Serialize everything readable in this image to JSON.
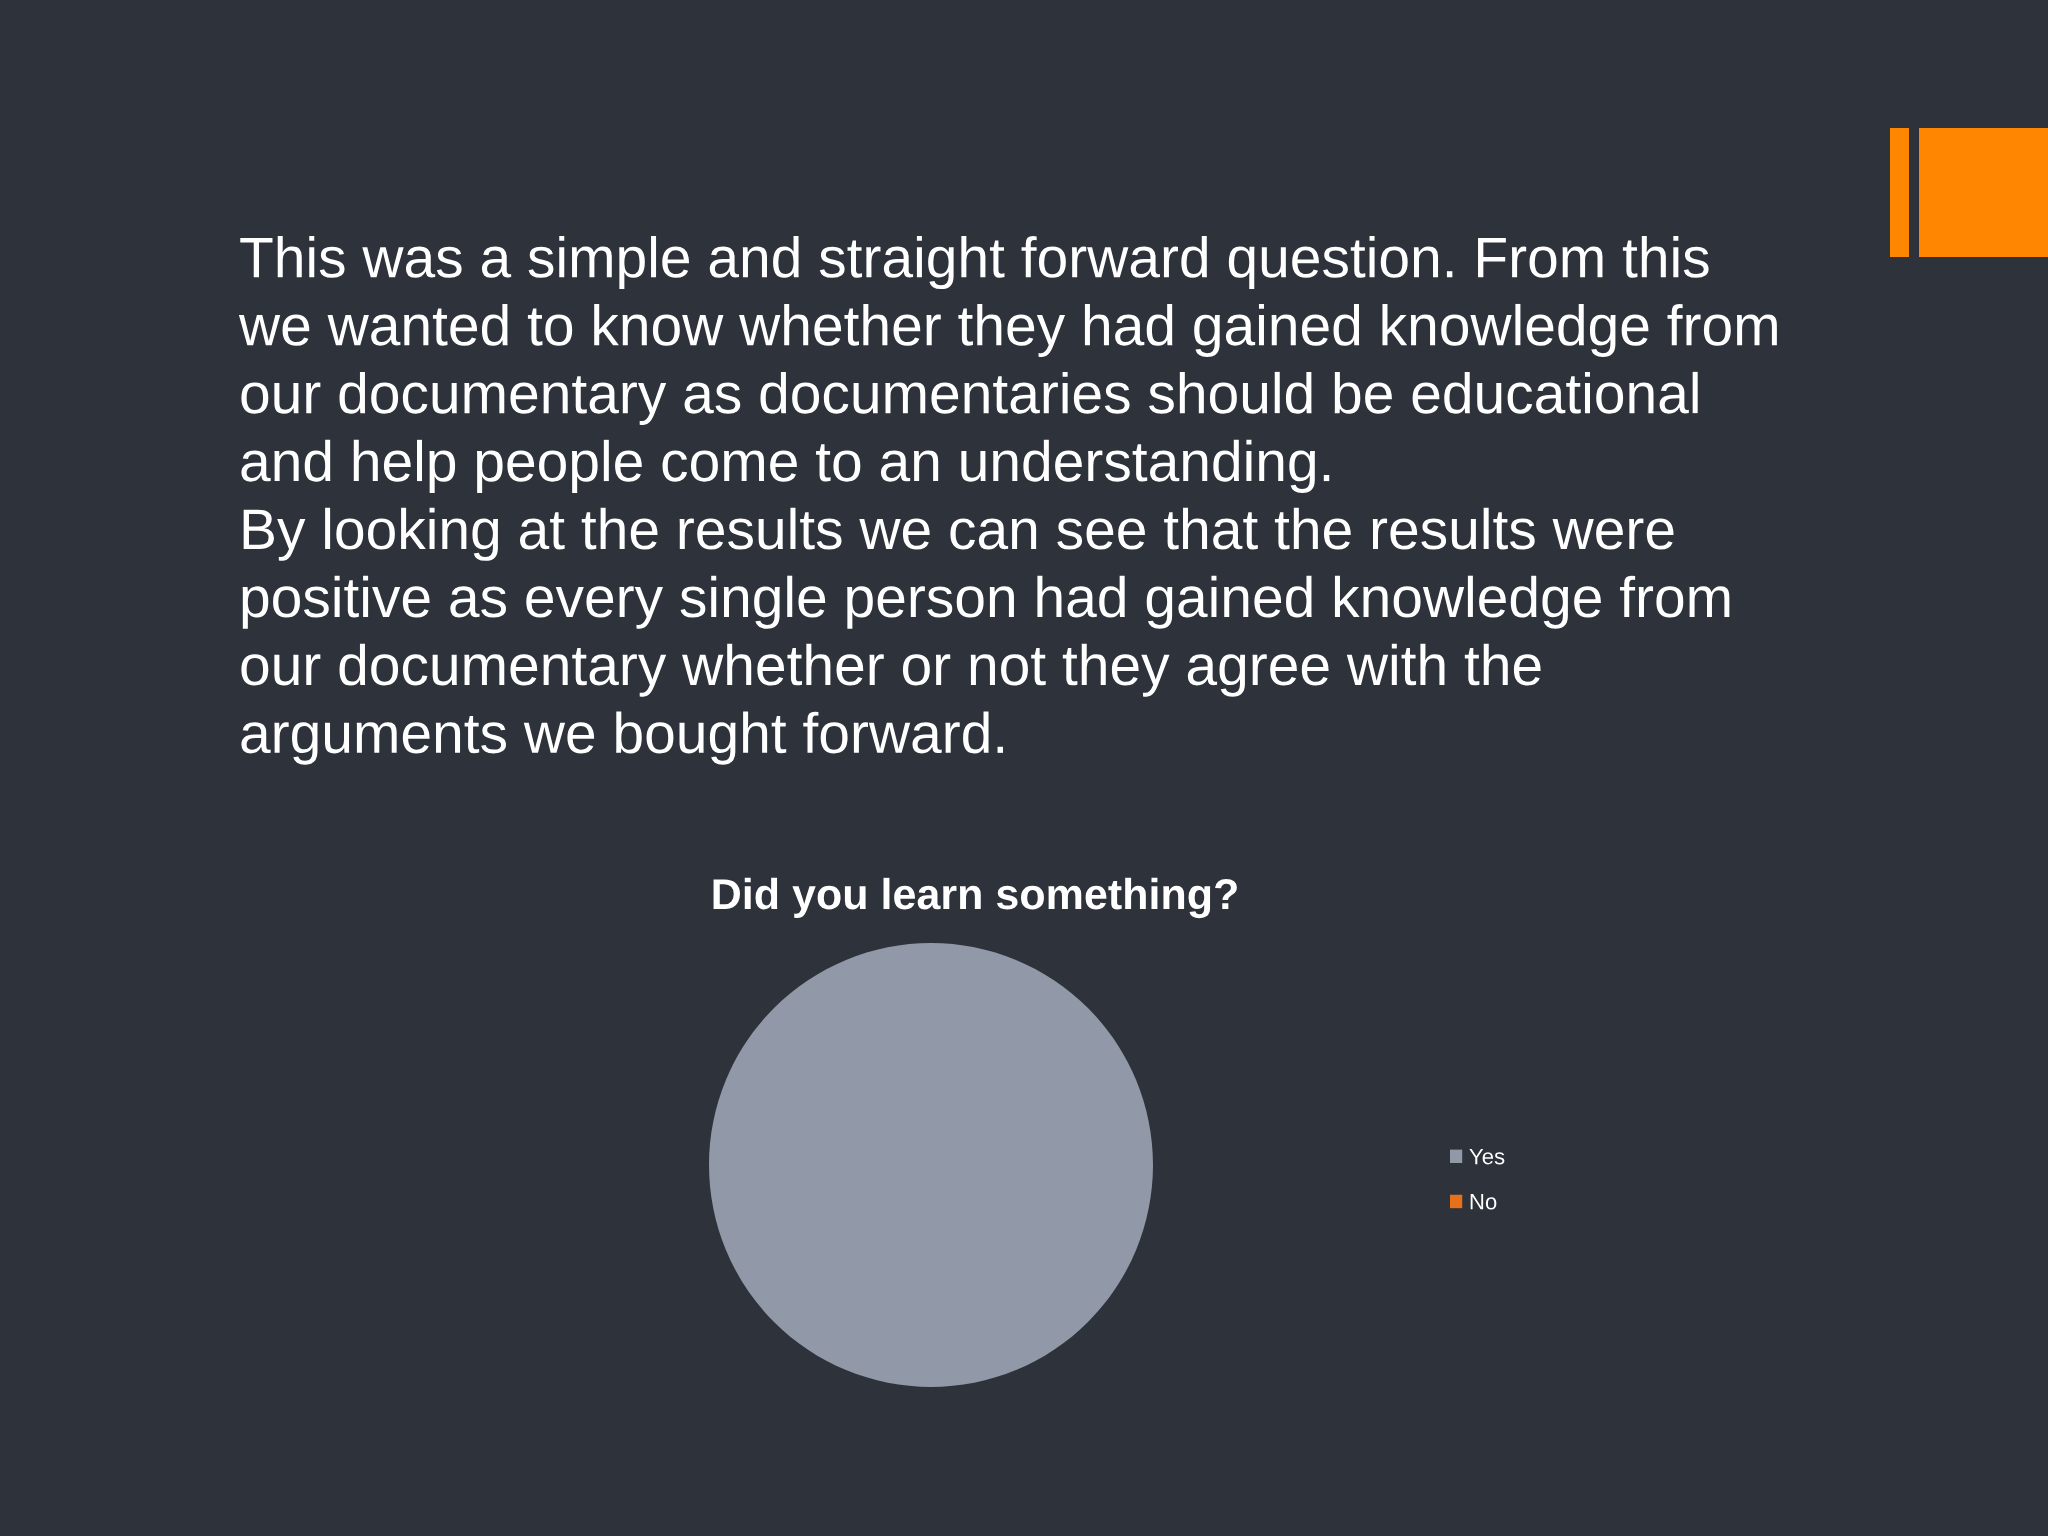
{
  "chart_data": {
    "type": "pie",
    "title": "Did you learn something?",
    "categories": [
      "Yes",
      "No"
    ],
    "values": [
      100,
      0
    ],
    "colors": [
      "#9199a8",
      "#e8701a"
    ],
    "legend": "right",
    "annotations": [
      "This was a simple and straight forward question. From this we wanted to know whether they had gained knowledge from our documentary as documentaries should be educational and help people come to an understanding.",
      "By looking at the results we can see that the results were positive as every single person had gained knowledge from our documentary whether or not they agree with the arguments we bought forward."
    ]
  }
}
